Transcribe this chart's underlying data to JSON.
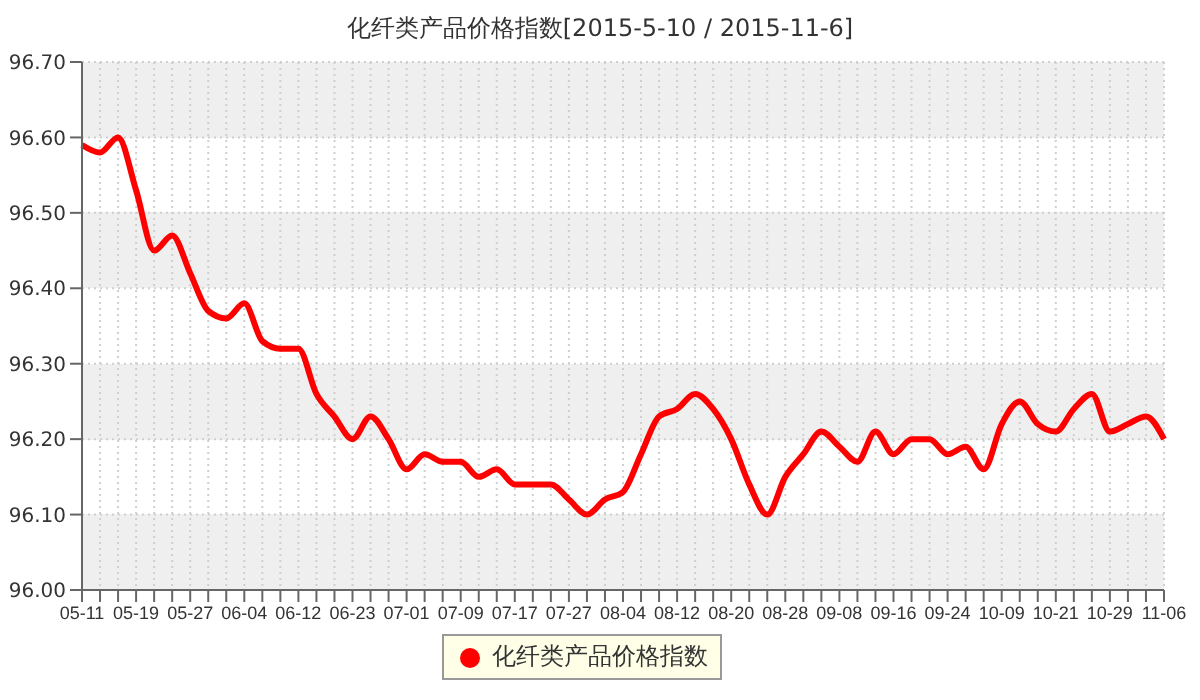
{
  "chart_data": {
    "type": "line",
    "title": "化纤类产品价格指数[2015-5-10 / 2015-11-6]",
    "categories": [
      "05-11",
      null,
      null,
      "05-19",
      null,
      null,
      "05-27",
      null,
      null,
      "06-04",
      null,
      null,
      "06-12",
      null,
      null,
      "06-23",
      null,
      null,
      "07-01",
      null,
      null,
      "07-09",
      null,
      null,
      "07-17",
      null,
      null,
      "07-27",
      null,
      null,
      "08-04",
      null,
      null,
      "08-12",
      null,
      null,
      "08-20",
      null,
      null,
      "08-28",
      null,
      null,
      "09-08",
      null,
      null,
      "09-16",
      null,
      null,
      "09-24",
      null,
      null,
      "10-09",
      null,
      null,
      "10-21",
      null,
      null,
      "10-29",
      null,
      null,
      "11-06"
    ],
    "series": [
      {
        "name": "化纤类产品价格指数",
        "color": "#ff0000",
        "values": [
          96.59,
          96.58,
          96.6,
          96.53,
          96.45,
          96.47,
          96.42,
          96.37,
          96.36,
          96.38,
          96.33,
          96.32,
          96.32,
          96.26,
          96.23,
          96.2,
          96.23,
          96.2,
          96.16,
          96.18,
          96.17,
          96.17,
          96.15,
          96.16,
          96.14,
          96.14,
          96.14,
          96.12,
          96.1,
          96.12,
          96.13,
          96.18,
          96.23,
          96.24,
          96.26,
          96.24,
          96.2,
          96.14,
          96.1,
          96.15,
          96.18,
          96.21,
          96.19,
          96.17,
          96.21,
          96.18,
          96.2,
          96.2,
          96.18,
          96.19,
          96.16,
          96.22,
          96.25,
          96.22,
          96.21,
          96.24,
          96.26,
          96.21,
          96.22,
          96.23,
          96.2
        ]
      }
    ],
    "ylim": [
      96.0,
      96.7
    ],
    "yticks": [
      {
        "value": 96.0,
        "label": "96.00"
      },
      {
        "value": 96.1,
        "label": "96.10"
      },
      {
        "value": 96.2,
        "label": "96.20"
      },
      {
        "value": 96.3,
        "label": "96.30"
      },
      {
        "value": 96.4,
        "label": "96.40"
      },
      {
        "value": 96.5,
        "label": "96.50"
      },
      {
        "value": 96.6,
        "label": "96.60"
      },
      {
        "value": 96.7,
        "label": "96.70"
      }
    ],
    "grid": true,
    "legend": "bottom",
    "marker": "none",
    "line_style": "solid"
  }
}
